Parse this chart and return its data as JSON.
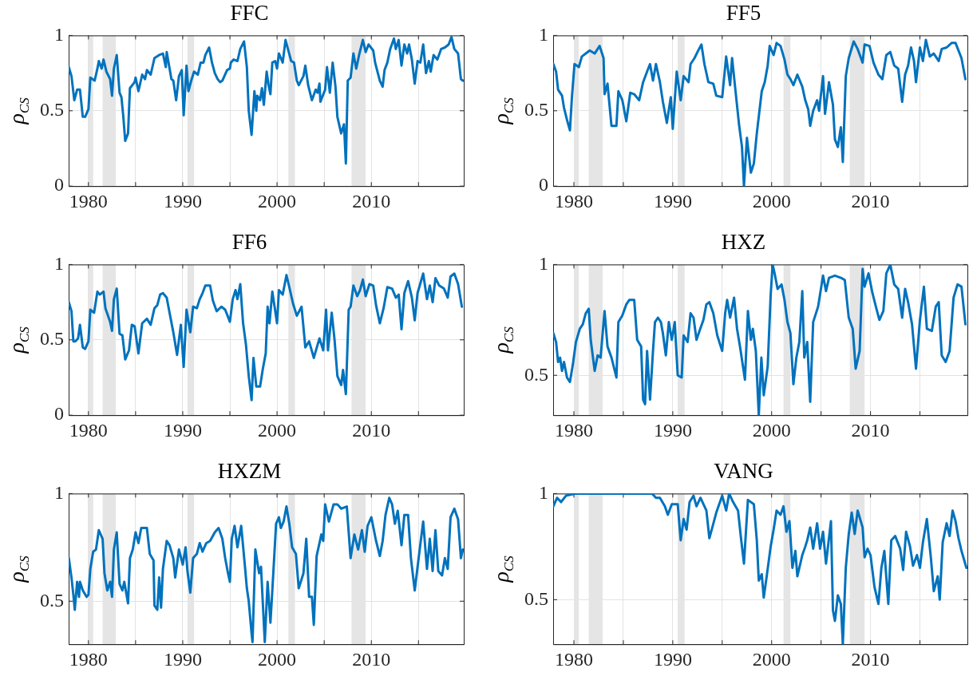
{
  "chart_data": [
    {
      "type": "line",
      "title": "FFC",
      "ylabel": "ρ$_{CS}$",
      "color": "#0072bd",
      "grid": true,
      "xlim": [
        1977.9,
        2019.8
      ],
      "ylim": [
        0,
        1
      ],
      "yticks": [
        0,
        0.5,
        1
      ],
      "xticks": [
        1980,
        {
          "value": 1985,
          "label": null
        },
        1990,
        {
          "value": 1995,
          "label": null
        },
        2000,
        {
          "value": 2005,
          "label": null
        },
        2010,
        {
          "value": 2015,
          "label": null
        }
      ],
      "bands": [
        {
          "axis": "x",
          "from": 1980.0,
          "to": 1980.5,
          "color": "#e5e5e5"
        },
        {
          "axis": "x",
          "from": 1981.5,
          "to": 1982.9,
          "color": "#e5e5e5"
        },
        {
          "axis": "x",
          "from": 1990.5,
          "to": 1991.2,
          "color": "#e5e5e5"
        },
        {
          "axis": "x",
          "from": 2001.2,
          "to": 2001.9,
          "color": "#e5e5e5"
        },
        {
          "axis": "x",
          "from": 2007.9,
          "to": 2009.4,
          "color": "#e5e5e5"
        }
      ],
      "x": [
        1977.92,
        1978.2,
        1978.5,
        1978.8,
        1979.1,
        1979.4,
        1979.65,
        1980.0,
        1980.2,
        1980.66,
        1980.95,
        1981.1,
        1981.4,
        1981.6,
        1981.9,
        1982.3,
        1982.5,
        1982.7,
        1983.0,
        1983.3,
        1983.5,
        1983.7,
        1983.9,
        1984.2,
        1984.4,
        1984.9,
        1985.0,
        1985.3,
        1985.7,
        1986.0,
        1986.2,
        1986.6,
        1987.0,
        1987.5,
        1987.9,
        1988.2,
        1988.3,
        1988.8,
        1989.0,
        1989.3,
        1989.6,
        1989.9,
        1990.1,
        1990.4,
        1990.6,
        1990.9,
        1991.2,
        1991.6,
        1991.9,
        1992.2,
        1992.4,
        1992.8,
        1993.1,
        1993.4,
        1993.7,
        1993.96,
        1994.2,
        1994.7,
        1995.0,
        1995.1,
        1995.4,
        1995.8,
        1996.1,
        1996.5,
        1996.8,
        1997.0,
        1997.3,
        1997.6,
        1997.8,
        1997.9,
        1998.2,
        1998.4,
        1998.6,
        1998.9,
        1999.1,
        1999.3,
        1999.5,
        1999.8,
        2000.0,
        2000.2,
        2000.6,
        2000.9,
        2001.2,
        2001.5,
        2001.8,
        2002.1,
        2002.3,
        2002.8,
        2003.0,
        2003.3,
        2003.7,
        2004.1,
        2004.3,
        2004.5,
        2004.6,
        2005.1,
        2005.3,
        2005.6,
        2005.9,
        2006.2,
        2006.4,
        2006.8,
        2007.1,
        2007.3,
        2007.5,
        2007.8,
        2008.1,
        2008.4,
        2008.7,
        2009.1,
        2009.4,
        2009.7,
        2010.2,
        2010.4,
        2010.9,
        2011.2,
        2011.4,
        2011.7,
        2012.0,
        2012.4,
        2012.6,
        2012.9,
        2013.2,
        2013.5,
        2013.8,
        2014.0,
        2014.3,
        2014.6,
        2014.9,
        2015.2,
        2015.5,
        2015.8,
        2016.1,
        2016.3,
        2016.6,
        2017.0,
        2017.4,
        2017.8,
        2018.2,
        2018.5,
        2018.8,
        2019.2,
        2019.5,
        2019.7
      ],
      "values": [
        0.79,
        0.73,
        0.57,
        0.64,
        0.64,
        0.46,
        0.46,
        0.51,
        0.72,
        0.7,
        0.78,
        0.83,
        0.78,
        0.84,
        0.76,
        0.71,
        0.6,
        0.78,
        0.87,
        0.62,
        0.59,
        0.46,
        0.3,
        0.35,
        0.65,
        0.69,
        0.72,
        0.63,
        0.74,
        0.71,
        0.77,
        0.74,
        0.85,
        0.87,
        0.88,
        0.79,
        0.89,
        0.71,
        0.7,
        0.57,
        0.73,
        0.77,
        0.47,
        0.8,
        0.63,
        0.7,
        0.76,
        0.74,
        0.82,
        0.82,
        0.87,
        0.92,
        0.82,
        0.75,
        0.71,
        0.69,
        0.7,
        0.77,
        0.78,
        0.82,
        0.84,
        0.83,
        0.91,
        0.96,
        0.79,
        0.5,
        0.34,
        0.63,
        0.5,
        0.6,
        0.57,
        0.65,
        0.54,
        0.76,
        0.67,
        0.61,
        0.82,
        0.83,
        0.78,
        0.88,
        0.82,
        0.97,
        0.9,
        0.83,
        0.82,
        0.7,
        0.67,
        0.73,
        0.8,
        0.67,
        0.57,
        0.64,
        0.62,
        0.68,
        0.56,
        0.64,
        0.79,
        0.62,
        0.82,
        0.66,
        0.46,
        0.35,
        0.41,
        0.15,
        0.7,
        0.72,
        0.88,
        0.78,
        0.87,
        0.97,
        0.89,
        0.94,
        0.9,
        0.82,
        0.7,
        0.66,
        0.77,
        0.82,
        0.91,
        0.98,
        0.91,
        0.97,
        0.8,
        0.94,
        0.88,
        0.94,
        0.84,
        0.68,
        0.83,
        0.82,
        0.94,
        0.75,
        0.83,
        0.76,
        0.87,
        0.84,
        0.91,
        0.92,
        0.94,
        0.99,
        0.91,
        0.88,
        0.71,
        0.7
      ]
    },
    {
      "type": "line",
      "title": "FF5",
      "ylabel": "ρ$_{CS}$",
      "color": "#0072bd",
      "grid": true,
      "xlim": [
        1977.9,
        2019.8
      ],
      "ylim": [
        0,
        1
      ],
      "yticks": [
        0,
        0.5,
        1
      ],
      "xticks": [
        1980,
        {
          "value": 1985,
          "label": null
        },
        1990,
        {
          "value": 1995,
          "label": null
        },
        2000,
        {
          "value": 2005,
          "label": null
        },
        2010,
        {
          "value": 2015,
          "label": null
        }
      ],
      "bands": [
        {
          "axis": "x",
          "from": 1980.0,
          "to": 1980.5,
          "color": "#e5e5e5"
        },
        {
          "axis": "x",
          "from": 1981.5,
          "to": 1982.9,
          "color": "#e5e5e5"
        },
        {
          "axis": "x",
          "from": 1990.5,
          "to": 1991.2,
          "color": "#e5e5e5"
        },
        {
          "axis": "x",
          "from": 2001.2,
          "to": 2001.9,
          "color": "#e5e5e5"
        },
        {
          "axis": "x",
          "from": 2007.9,
          "to": 2009.4,
          "color": "#e5e5e5"
        }
      ],
      "x": [
        1977.92,
        1978.2,
        1978.4,
        1978.8,
        1979.0,
        1979.3,
        1979.6,
        1979.8,
        1980.06,
        1980.5,
        1980.8,
        1981.2,
        1981.6,
        1982.1,
        1982.6,
        1983.0,
        1983.1,
        1983.4,
        1983.8,
        1984.3,
        1984.5,
        1984.9,
        1985.3,
        1985.7,
        1986.1,
        1986.6,
        1987.0,
        1987.4,
        1987.7,
        1988.0,
        1988.3,
        1988.7,
        1989.0,
        1989.4,
        1989.8,
        1990.0,
        1990.4,
        1990.8,
        1991.1,
        1991.6,
        1991.8,
        1992.2,
        1992.5,
        1992.9,
        1993.2,
        1993.6,
        1994.1,
        1994.4,
        1995.0,
        1995.4,
        1995.8,
        1996.0,
        1996.3,
        1996.7,
        1997.0,
        1997.2,
        1997.5,
        1997.9,
        1998.2,
        1998.5,
        1999.0,
        1999.3,
        1999.6,
        1999.8,
        2000.2,
        2000.5,
        2000.9,
        2001.3,
        2001.6,
        2001.9,
        2002.2,
        2002.6,
        2003.1,
        2003.4,
        2003.7,
        2003.9,
        2004.2,
        2004.6,
        2004.8,
        2005.2,
        2005.4,
        2005.8,
        2006.2,
        2006.4,
        2006.7,
        2007.0,
        2007.2,
        2007.5,
        2007.8,
        2008.3,
        2008.7,
        2009.2,
        2009.4,
        2009.9,
        2010.3,
        2010.8,
        2011.2,
        2011.6,
        2012.0,
        2012.4,
        2012.8,
        2013.2,
        2013.5,
        2013.8,
        2014.1,
        2014.4,
        2014.6,
        2015.0,
        2015.3,
        2015.6,
        2016.0,
        2016.4,
        2016.9,
        2017.2,
        2017.7,
        2018.2,
        2018.6,
        2019.2,
        2019.6
      ],
      "values": [
        0.81,
        0.76,
        0.64,
        0.6,
        0.52,
        0.44,
        0.37,
        0.59,
        0.81,
        0.79,
        0.86,
        0.88,
        0.9,
        0.88,
        0.93,
        0.85,
        0.61,
        0.68,
        0.4,
        0.4,
        0.63,
        0.57,
        0.43,
        0.62,
        0.61,
        0.57,
        0.69,
        0.76,
        0.81,
        0.7,
        0.81,
        0.69,
        0.56,
        0.42,
        0.59,
        0.38,
        0.76,
        0.57,
        0.73,
        0.69,
        0.81,
        0.85,
        0.89,
        0.94,
        0.81,
        0.69,
        0.68,
        0.6,
        0.59,
        0.86,
        0.67,
        0.85,
        0.66,
        0.41,
        0.26,
        0.0,
        0.32,
        0.09,
        0.15,
        0.35,
        0.63,
        0.69,
        0.8,
        0.93,
        0.87,
        0.95,
        0.93,
        0.84,
        0.74,
        0.71,
        0.67,
        0.74,
        0.66,
        0.57,
        0.51,
        0.4,
        0.5,
        0.57,
        0.5,
        0.73,
        0.48,
        0.69,
        0.54,
        0.31,
        0.26,
        0.39,
        0.16,
        0.73,
        0.85,
        0.96,
        0.91,
        0.82,
        0.94,
        0.93,
        0.82,
        0.74,
        0.71,
        0.87,
        0.89,
        0.8,
        0.78,
        0.56,
        0.74,
        0.8,
        0.92,
        0.83,
        0.69,
        0.92,
        0.83,
        0.97,
        0.86,
        0.88,
        0.83,
        0.91,
        0.92,
        0.95,
        0.95,
        0.85,
        0.71
      ]
    },
    {
      "type": "line",
      "title": "FF6",
      "ylabel": "ρ$_{CS}$",
      "color": "#0072bd",
      "grid": true,
      "xlim": [
        1977.9,
        2019.8
      ],
      "ylim": [
        0,
        1
      ],
      "yticks": [
        0,
        0.5,
        1
      ],
      "xticks": [
        1980,
        {
          "value": 1985,
          "label": null
        },
        1990,
        {
          "value": 1995,
          "label": null
        },
        2000,
        {
          "value": 2005,
          "label": null
        },
        2010,
        {
          "value": 2015,
          "label": null
        }
      ],
      "bands": [
        {
          "axis": "x",
          "from": 1980.0,
          "to": 1980.5,
          "color": "#e5e5e5"
        },
        {
          "axis": "x",
          "from": 1981.5,
          "to": 1982.9,
          "color": "#e5e5e5"
        },
        {
          "axis": "x",
          "from": 1990.5,
          "to": 1991.2,
          "color": "#e5e5e5"
        },
        {
          "axis": "x",
          "from": 2001.2,
          "to": 2001.9,
          "color": "#e5e5e5"
        },
        {
          "axis": "x",
          "from": 2007.9,
          "to": 2009.4,
          "color": "#e5e5e5"
        }
      ],
      "x": [
        1977.92,
        1978.2,
        1978.4,
        1978.6,
        1978.9,
        1979.1,
        1979.4,
        1979.65,
        1980.0,
        1980.2,
        1980.6,
        1980.95,
        1981.2,
        1981.6,
        1981.8,
        1982.3,
        1982.5,
        1982.7,
        1983.0,
        1983.3,
        1983.6,
        1983.9,
        1984.3,
        1984.6,
        1984.9,
        1985.3,
        1985.7,
        1986.2,
        1986.6,
        1987.0,
        1987.3,
        1987.6,
        1987.9,
        1988.3,
        1988.6,
        1989.0,
        1989.4,
        1989.8,
        1990.1,
        1990.4,
        1990.8,
        1991.1,
        1991.5,
        1991.8,
        1992.1,
        1992.4,
        1992.9,
        1993.2,
        1993.6,
        1994.1,
        1994.5,
        1995.0,
        1995.3,
        1995.6,
        1995.8,
        1996.1,
        1996.4,
        1996.7,
        1997.0,
        1997.3,
        1997.5,
        1997.8,
        1998.2,
        1998.5,
        1998.8,
        1999.0,
        1999.2,
        1999.5,
        2000.0,
        2000.2,
        2000.6,
        2001.0,
        2001.3,
        2001.7,
        2002.1,
        2002.6,
        2003.0,
        2003.4,
        2003.9,
        2004.5,
        2004.9,
        2005.2,
        2005.4,
        2005.8,
        2006.1,
        2006.4,
        2006.8,
        2007.0,
        2007.3,
        2007.6,
        2007.8,
        2008.1,
        2008.5,
        2008.8,
        2009.1,
        2009.4,
        2009.8,
        2010.2,
        2010.5,
        2010.9,
        2011.3,
        2011.7,
        2012.2,
        2012.6,
        2012.9,
        2013.2,
        2013.5,
        2013.9,
        2014.3,
        2014.6,
        2014.9,
        2015.5,
        2015.9,
        2016.2,
        2016.5,
        2016.8,
        2017.2,
        2017.7,
        2018.1,
        2018.4,
        2018.8,
        2019.2,
        2019.6
      ],
      "values": [
        0.75,
        0.69,
        0.49,
        0.49,
        0.51,
        0.6,
        0.45,
        0.44,
        0.49,
        0.7,
        0.68,
        0.82,
        0.8,
        0.82,
        0.71,
        0.62,
        0.56,
        0.77,
        0.84,
        0.54,
        0.53,
        0.37,
        0.43,
        0.6,
        0.59,
        0.41,
        0.61,
        0.64,
        0.6,
        0.71,
        0.73,
        0.8,
        0.81,
        0.78,
        0.68,
        0.55,
        0.4,
        0.6,
        0.32,
        0.7,
        0.55,
        0.72,
        0.71,
        0.77,
        0.81,
        0.86,
        0.86,
        0.76,
        0.69,
        0.72,
        0.7,
        0.62,
        0.77,
        0.83,
        0.77,
        0.87,
        0.61,
        0.47,
        0.26,
        0.1,
        0.38,
        0.19,
        0.19,
        0.31,
        0.41,
        0.72,
        0.61,
        0.82,
        0.61,
        0.83,
        0.8,
        0.93,
        0.85,
        0.74,
        0.66,
        0.72,
        0.45,
        0.49,
        0.38,
        0.51,
        0.43,
        0.7,
        0.43,
        0.68,
        0.5,
        0.26,
        0.2,
        0.3,
        0.14,
        0.7,
        0.72,
        0.86,
        0.79,
        0.83,
        0.9,
        0.79,
        0.87,
        0.86,
        0.73,
        0.61,
        0.71,
        0.85,
        0.84,
        0.78,
        0.8,
        0.57,
        0.81,
        0.89,
        0.78,
        0.63,
        0.81,
        0.94,
        0.77,
        0.86,
        0.75,
        0.91,
        0.86,
        0.84,
        0.78,
        0.92,
        0.94,
        0.87,
        0.72
      ]
    },
    {
      "type": "line",
      "title": "HXZ",
      "ylabel": "ρ$_{CS}$",
      "color": "#0072bd",
      "grid": true,
      "xlim": [
        1977.9,
        2019.8
      ],
      "ylim": [
        0.32,
        1
      ],
      "yticks": [
        0.5,
        1
      ],
      "xticks": [
        1980,
        {
          "value": 1985,
          "label": null
        },
        1990,
        {
          "value": 1995,
          "label": null
        },
        2000,
        {
          "value": 2005,
          "label": null
        },
        2010,
        {
          "value": 2015,
          "label": null
        }
      ],
      "bands": [
        {
          "axis": "x",
          "from": 1980.0,
          "to": 1980.5,
          "color": "#e5e5e5"
        },
        {
          "axis": "x",
          "from": 1981.5,
          "to": 1982.9,
          "color": "#e5e5e5"
        },
        {
          "axis": "x",
          "from": 1990.5,
          "to": 1991.2,
          "color": "#e5e5e5"
        },
        {
          "axis": "x",
          "from": 2001.2,
          "to": 2001.9,
          "color": "#e5e5e5"
        },
        {
          "axis": "x",
          "from": 2007.9,
          "to": 2009.4,
          "color": "#e5e5e5"
        }
      ],
      "x": [
        1977.92,
        1978.2,
        1978.4,
        1978.6,
        1978.8,
        1979.0,
        1979.3,
        1979.6,
        1979.9,
        1980.2,
        1980.6,
        1980.9,
        1981.2,
        1981.5,
        1981.7,
        1982.1,
        1982.4,
        1982.7,
        1983.1,
        1983.4,
        1983.8,
        1984.3,
        1984.5,
        1984.9,
        1985.3,
        1985.6,
        1986.1,
        1986.4,
        1986.8,
        1987.0,
        1987.2,
        1987.4,
        1987.7,
        1988.0,
        1988.2,
        1988.5,
        1988.8,
        1989.0,
        1989.3,
        1989.6,
        1989.9,
        1990.2,
        1990.5,
        1990.9,
        1991.1,
        1991.5,
        1991.8,
        1992.1,
        1992.4,
        1992.7,
        1993.1,
        1993.4,
        1993.7,
        1994.1,
        1994.5,
        1995.0,
        1995.3,
        1995.5,
        1995.8,
        1996.2,
        1996.5,
        1996.8,
        1997.3,
        1997.6,
        1997.9,
        1998.1,
        1998.4,
        1998.7,
        1998.96,
        1999.2,
        1999.6,
        1999.9,
        2000.1,
        2000.3,
        2000.6,
        2001.0,
        2001.3,
        2001.6,
        2001.9,
        2002.2,
        2002.5,
        2002.8,
        2003.1,
        2003.3,
        2003.6,
        2003.9,
        2004.2,
        2004.7,
        2005.2,
        2005.5,
        2005.8,
        2006.4,
        2007.0,
        2007.4,
        2007.8,
        2008.2,
        2008.5,
        2008.9,
        2009.2,
        2009.4,
        2009.8,
        2010.2,
        2010.6,
        2010.9,
        2011.3,
        2011.6,
        2012.0,
        2012.4,
        2012.8,
        2013.2,
        2013.5,
        2013.8,
        2014.2,
        2014.6,
        2015.0,
        2015.4,
        2015.7,
        2016.2,
        2016.6,
        2016.9,
        2017.2,
        2017.6,
        2018.0,
        2018.4,
        2018.8,
        2019.2,
        2019.6
      ],
      "values": [
        0.69,
        0.65,
        0.56,
        0.58,
        0.52,
        0.56,
        0.49,
        0.47,
        0.55,
        0.65,
        0.71,
        0.73,
        0.78,
        0.8,
        0.66,
        0.52,
        0.59,
        0.58,
        0.79,
        0.63,
        0.58,
        0.49,
        0.74,
        0.77,
        0.82,
        0.84,
        0.84,
        0.66,
        0.63,
        0.39,
        0.37,
        0.61,
        0.39,
        0.61,
        0.74,
        0.76,
        0.74,
        0.69,
        0.59,
        0.74,
        0.66,
        0.74,
        0.5,
        0.49,
        0.68,
        0.65,
        0.78,
        0.76,
        0.66,
        0.7,
        0.75,
        0.82,
        0.83,
        0.78,
        0.68,
        0.61,
        0.78,
        0.84,
        0.76,
        0.85,
        0.71,
        0.63,
        0.48,
        0.79,
        0.66,
        0.71,
        0.61,
        0.32,
        0.58,
        0.41,
        0.54,
        0.86,
        1.0,
        0.96,
        0.89,
        0.91,
        0.84,
        0.74,
        0.69,
        0.46,
        0.58,
        0.65,
        0.88,
        0.58,
        0.65,
        0.38,
        0.74,
        0.81,
        0.95,
        0.88,
        0.94,
        0.95,
        0.94,
        0.93,
        0.76,
        0.71,
        0.53,
        0.61,
        0.98,
        0.9,
        0.96,
        0.87,
        0.8,
        0.75,
        0.79,
        0.96,
        1.0,
        0.91,
        0.89,
        0.76,
        0.89,
        0.83,
        0.73,
        0.53,
        0.75,
        0.9,
        0.71,
        0.7,
        0.81,
        0.83,
        0.59,
        0.56,
        0.61,
        0.85,
        0.91,
        0.9,
        0.73
      ]
    },
    {
      "type": "line",
      "title": "HXZM",
      "ylabel": "ρ$_{CS}$",
      "color": "#0072bd",
      "grid": true,
      "xlim": [
        1977.9,
        2019.8
      ],
      "ylim": [
        0.3,
        1
      ],
      "yticks": [
        0.5,
        1
      ],
      "xticks": [
        1980,
        {
          "value": 1985,
          "label": null
        },
        1990,
        {
          "value": 1995,
          "label": null
        },
        2000,
        {
          "value": 2005,
          "label": null
        },
        2010,
        {
          "value": 2015,
          "label": null
        }
      ],
      "bands": [
        {
          "axis": "x",
          "from": 1980.0,
          "to": 1980.5,
          "color": "#e5e5e5"
        },
        {
          "axis": "x",
          "from": 1981.5,
          "to": 1982.9,
          "color": "#e5e5e5"
        },
        {
          "axis": "x",
          "from": 1990.5,
          "to": 1991.2,
          "color": "#e5e5e5"
        },
        {
          "axis": "x",
          "from": 2001.2,
          "to": 2001.9,
          "color": "#e5e5e5"
        },
        {
          "axis": "x",
          "from": 2007.9,
          "to": 2009.4,
          "color": "#e5e5e5"
        }
      ],
      "x": [
        1977.92,
        1978.2,
        1978.4,
        1978.55,
        1978.8,
        1979.0,
        1979.1,
        1979.4,
        1979.8,
        1980.0,
        1980.2,
        1980.5,
        1980.8,
        1981.1,
        1981.5,
        1981.7,
        1982.0,
        1982.3,
        1982.5,
        1982.7,
        1983.0,
        1983.3,
        1983.6,
        1983.8,
        1984.2,
        1984.4,
        1984.7,
        1985.0,
        1985.3,
        1985.6,
        1986.2,
        1986.5,
        1986.9,
        1987.0,
        1987.3,
        1987.5,
        1987.7,
        1987.9,
        1988.3,
        1988.6,
        1989.0,
        1989.2,
        1989.6,
        1990.0,
        1990.3,
        1990.5,
        1990.8,
        1991.1,
        1991.5,
        1991.8,
        1992.1,
        1992.5,
        1992.9,
        1993.4,
        1993.8,
        1994.2,
        1994.5,
        1994.8,
        1995.0,
        1995.2,
        1995.5,
        1995.8,
        1996.2,
        1996.6,
        1996.8,
        1997.0,
        1997.3,
        1997.4,
        1997.7,
        1998.1,
        1998.3,
        1998.7,
        1999.0,
        1999.3,
        1999.5,
        1999.9,
        2000.2,
        2000.4,
        2000.7,
        2001.0,
        2001.3,
        2001.6,
        2002.0,
        2002.3,
        2002.8,
        2003.1,
        2003.4,
        2003.7,
        2003.9,
        2004.2,
        2004.7,
        2004.9,
        2005.1,
        2005.5,
        2006.0,
        2006.4,
        2006.8,
        2007.4,
        2007.8,
        2008.2,
        2008.6,
        2009.0,
        2009.3,
        2009.6,
        2010.0,
        2010.5,
        2010.9,
        2011.2,
        2011.5,
        2011.9,
        2012.2,
        2012.5,
        2012.8,
        2013.2,
        2013.5,
        2013.9,
        2014.2,
        2014.6,
        2015.1,
        2015.5,
        2015.9,
        2016.2,
        2016.5,
        2016.8,
        2017.1,
        2017.5,
        2017.8,
        2018.1,
        2018.4,
        2018.8,
        2019.2,
        2019.5,
        2019.7
      ],
      "values": [
        0.7,
        0.61,
        0.53,
        0.46,
        0.59,
        0.52,
        0.59,
        0.55,
        0.52,
        0.53,
        0.65,
        0.73,
        0.74,
        0.83,
        0.79,
        0.63,
        0.55,
        0.59,
        0.52,
        0.74,
        0.82,
        0.58,
        0.55,
        0.59,
        0.49,
        0.7,
        0.74,
        0.82,
        0.77,
        0.84,
        0.84,
        0.72,
        0.69,
        0.48,
        0.46,
        0.61,
        0.47,
        0.65,
        0.78,
        0.76,
        0.7,
        0.61,
        0.74,
        0.67,
        0.75,
        0.64,
        0.54,
        0.7,
        0.72,
        0.77,
        0.73,
        0.77,
        0.78,
        0.82,
        0.84,
        0.79,
        0.7,
        0.63,
        0.59,
        0.79,
        0.85,
        0.75,
        0.85,
        0.66,
        0.56,
        0.5,
        0.35,
        0.31,
        0.74,
        0.63,
        0.66,
        0.31,
        0.59,
        0.4,
        0.55,
        0.86,
        0.89,
        0.84,
        0.87,
        0.94,
        0.86,
        0.75,
        0.72,
        0.56,
        0.63,
        0.79,
        0.52,
        0.52,
        0.39,
        0.71,
        0.81,
        0.78,
        0.95,
        0.87,
        0.95,
        0.95,
        0.93,
        0.94,
        0.7,
        0.81,
        0.74,
        0.83,
        0.73,
        0.85,
        0.89,
        0.78,
        0.71,
        0.78,
        0.9,
        0.98,
        0.95,
        0.86,
        0.92,
        0.76,
        0.9,
        0.9,
        0.7,
        0.55,
        0.73,
        0.87,
        0.65,
        0.79,
        0.64,
        0.83,
        0.64,
        0.62,
        0.7,
        0.65,
        0.89,
        0.93,
        0.88,
        0.7,
        0.74
      ]
    },
    {
      "type": "line",
      "title": "VANG",
      "ylabel": "ρ$_{CS}$",
      "color": "#0072bd",
      "grid": true,
      "xlim": [
        1977.9,
        2019.8
      ],
      "ylim": [
        0.29,
        1
      ],
      "yticks": [
        0.5,
        1
      ],
      "xticks": [
        1980,
        {
          "value": 1985,
          "label": null
        },
        1990,
        {
          "value": 1995,
          "label": null
        },
        2000,
        {
          "value": 2005,
          "label": null
        },
        2010,
        {
          "value": 2015,
          "label": null
        }
      ],
      "bands": [
        {
          "axis": "x",
          "from": 1980.0,
          "to": 1980.5,
          "color": "#e5e5e5"
        },
        {
          "axis": "x",
          "from": 1981.5,
          "to": 1982.9,
          "color": "#e5e5e5"
        },
        {
          "axis": "x",
          "from": 1990.5,
          "to": 1991.2,
          "color": "#e5e5e5"
        },
        {
          "axis": "x",
          "from": 2001.2,
          "to": 2001.9,
          "color": "#e5e5e5"
        },
        {
          "axis": "x",
          "from": 2007.9,
          "to": 2009.4,
          "color": "#e5e5e5"
        }
      ],
      "x": [
        1977.92,
        1978.3,
        1978.7,
        1979.2,
        1980.2,
        1983.1,
        1986.0,
        1987.9,
        1988.3,
        1988.7,
        1989.2,
        1989.5,
        1989.9,
        1990.5,
        1990.8,
        1991.1,
        1991.4,
        1991.7,
        1992.1,
        1992.4,
        1992.8,
        1993.4,
        1993.7,
        1994.0,
        1994.4,
        1995.0,
        1995.4,
        1995.7,
        1996.1,
        1996.6,
        1996.9,
        1997.2,
        1997.6,
        1998.2,
        1998.5,
        1998.7,
        1999.0,
        1999.2,
        1999.5,
        1999.9,
        2000.2,
        2000.5,
        2000.9,
        2001.2,
        2001.5,
        2001.8,
        2002.1,
        2002.4,
        2002.6,
        2003.1,
        2003.4,
        2003.6,
        2003.9,
        2004.2,
        2004.6,
        2004.9,
        2005.2,
        2005.5,
        2006.0,
        2006.2,
        2006.4,
        2006.7,
        2007.0,
        2007.2,
        2007.5,
        2007.8,
        2008.1,
        2008.4,
        2008.7,
        2009.2,
        2009.4,
        2009.7,
        2010.0,
        2010.4,
        2010.8,
        2011.1,
        2011.4,
        2011.8,
        2012.1,
        2012.5,
        2013.0,
        2013.3,
        2013.6,
        2014.0,
        2014.3,
        2014.7,
        2015.0,
        2015.3,
        2015.7,
        2016.1,
        2016.4,
        2016.8,
        2017.0,
        2017.3,
        2017.7,
        2018.0,
        2018.3,
        2018.6,
        2018.9,
        2019.2,
        2019.7
      ],
      "values": [
        0.94,
        0.98,
        0.96,
        0.99,
        1.0,
        1.0,
        1.0,
        1.0,
        0.98,
        0.98,
        0.94,
        0.9,
        0.95,
        0.95,
        0.78,
        0.88,
        0.83,
        0.96,
        0.99,
        0.94,
        0.98,
        0.92,
        0.79,
        0.84,
        0.91,
        0.99,
        0.92,
        1.0,
        0.96,
        0.92,
        0.79,
        0.67,
        0.97,
        0.95,
        0.78,
        0.59,
        0.62,
        0.51,
        0.61,
        0.75,
        0.83,
        0.92,
        0.9,
        0.94,
        0.82,
        0.87,
        0.65,
        0.73,
        0.61,
        0.71,
        0.75,
        0.78,
        0.84,
        0.74,
        0.86,
        0.74,
        0.82,
        0.67,
        0.87,
        0.45,
        0.4,
        0.52,
        0.48,
        0.29,
        0.65,
        0.81,
        0.91,
        0.81,
        0.92,
        0.84,
        0.7,
        0.74,
        0.71,
        0.56,
        0.48,
        0.65,
        0.73,
        0.48,
        0.78,
        0.8,
        0.74,
        0.64,
        0.82,
        0.75,
        0.66,
        0.71,
        0.65,
        0.77,
        0.88,
        0.7,
        0.54,
        0.61,
        0.5,
        0.77,
        0.86,
        0.8,
        0.92,
        0.87,
        0.79,
        0.73,
        0.65
      ]
    }
  ]
}
